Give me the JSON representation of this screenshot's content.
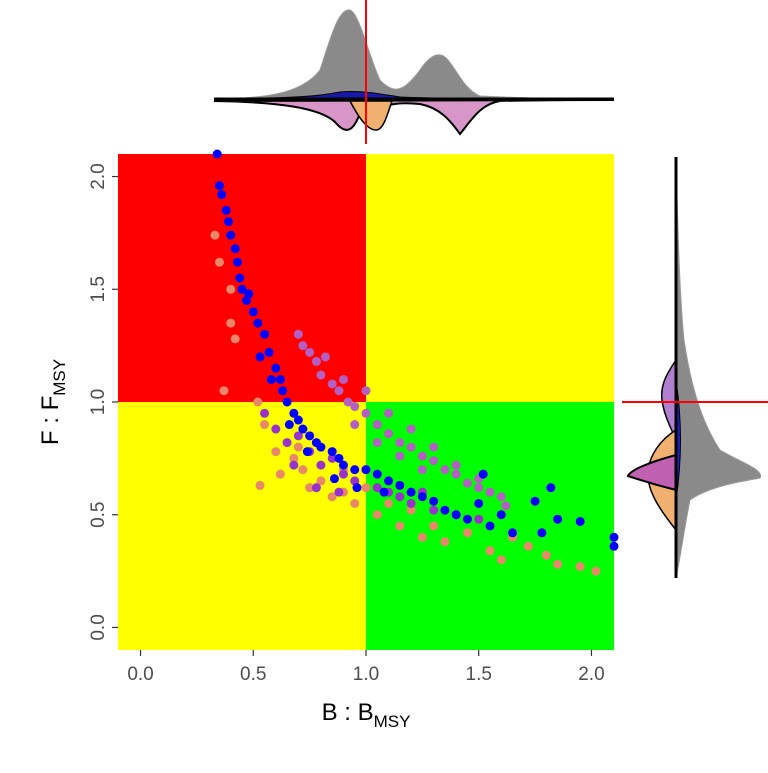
{
  "chart_data": {
    "type": "scatter",
    "title": "",
    "xlabel": {
      "main": "B : B",
      "sub": "MSY"
    },
    "ylabel": {
      "main": "F : F",
      "sub": "MSY"
    },
    "xlim": [
      -0.1,
      2.1
    ],
    "ylim": [
      -0.1,
      2.1
    ],
    "xticks": [
      "0.0",
      "0.5",
      "1.0",
      "1.5",
      "2.0"
    ],
    "yticks": [
      "0.0",
      "0.5",
      "1.0",
      "1.5",
      "2.0"
    ],
    "xtick_values": [
      0,
      0.5,
      1.0,
      1.5,
      2.0
    ],
    "ytick_values": [
      0,
      0.5,
      1.0,
      1.5,
      2.0
    ],
    "reference_point": {
      "x": 1.0,
      "y": 1.0
    },
    "quadrant_colors": {
      "top_left": "#ff0000",
      "top_right": "#ffff00",
      "bottom_left": "#ffff00",
      "bottom_right": "#00ff00"
    },
    "reference_line_color": "#ff0000",
    "series": [
      {
        "color": "#e8876a",
        "points": [
          [
            0.33,
            1.74
          ],
          [
            0.35,
            1.62
          ],
          [
            0.4,
            1.5
          ],
          [
            0.4,
            1.35
          ],
          [
            0.42,
            1.28
          ],
          [
            0.37,
            1.05
          ],
          [
            0.52,
            1.0
          ],
          [
            0.55,
            0.9
          ],
          [
            0.53,
            0.63
          ],
          [
            0.6,
            0.78
          ],
          [
            0.62,
            0.68
          ],
          [
            0.68,
            0.75
          ],
          [
            0.72,
            0.7
          ],
          [
            0.75,
            0.62
          ],
          [
            0.8,
            0.65
          ],
          [
            0.85,
            0.58
          ],
          [
            0.9,
            0.6
          ],
          [
            0.95,
            0.55
          ],
          [
            1.0,
            0.62
          ],
          [
            1.05,
            0.5
          ],
          [
            1.1,
            0.55
          ],
          [
            1.15,
            0.45
          ],
          [
            1.2,
            0.52
          ],
          [
            1.3,
            0.45
          ],
          [
            1.35,
            0.38
          ],
          [
            1.45,
            0.42
          ],
          [
            1.55,
            0.34
          ],
          [
            1.6,
            0.3
          ],
          [
            1.72,
            0.36
          ],
          [
            1.8,
            0.32
          ],
          [
            1.85,
            0.28
          ],
          [
            1.95,
            0.27
          ],
          [
            2.02,
            0.25
          ],
          [
            0.7,
            0.8
          ],
          [
            0.9,
            0.7
          ],
          [
            1.25,
            0.4
          ],
          [
            1.4,
            0.5
          ],
          [
            1.65,
            0.4
          ]
        ]
      },
      {
        "color": "#9932cc",
        "points": [
          [
            0.55,
            0.95
          ],
          [
            0.6,
            0.88
          ],
          [
            0.65,
            0.82
          ],
          [
            0.7,
            0.85
          ],
          [
            0.75,
            0.78
          ],
          [
            0.8,
            0.72
          ],
          [
            0.85,
            0.75
          ],
          [
            0.9,
            0.68
          ],
          [
            0.95,
            0.65
          ],
          [
            1.0,
            0.7
          ],
          [
            1.05,
            0.62
          ],
          [
            1.1,
            0.6
          ],
          [
            1.15,
            0.58
          ],
          [
            1.2,
            0.55
          ],
          [
            1.3,
            0.52
          ],
          [
            1.4,
            0.5
          ],
          [
            1.5,
            0.48
          ],
          [
            0.68,
            0.72
          ],
          [
            0.78,
            0.62
          ],
          [
            0.88,
            0.6
          ],
          [
            1.25,
            0.6
          ]
        ]
      },
      {
        "color": "#b35fc4",
        "points": [
          [
            0.7,
            1.3
          ],
          [
            0.72,
            1.25
          ],
          [
            0.75,
            1.22
          ],
          [
            0.78,
            1.18
          ],
          [
            0.8,
            1.12
          ],
          [
            0.85,
            1.08
          ],
          [
            0.88,
            1.05
          ],
          [
            0.92,
            1.0
          ],
          [
            0.95,
            0.98
          ],
          [
            1.0,
            0.95
          ],
          [
            1.05,
            0.9
          ],
          [
            1.1,
            0.86
          ],
          [
            1.15,
            0.82
          ],
          [
            1.2,
            0.8
          ],
          [
            1.25,
            0.76
          ],
          [
            1.3,
            0.74
          ],
          [
            1.35,
            0.7
          ],
          [
            1.4,
            0.68
          ],
          [
            1.45,
            0.64
          ],
          [
            1.5,
            0.62
          ],
          [
            1.55,
            0.6
          ],
          [
            1.6,
            0.58
          ],
          [
            1.62,
            0.54
          ],
          [
            0.82,
            1.2
          ],
          [
            0.9,
            1.1
          ],
          [
            1.0,
            1.05
          ],
          [
            1.1,
            0.95
          ],
          [
            1.2,
            0.88
          ],
          [
            1.3,
            0.8
          ],
          [
            1.4,
            0.72
          ],
          [
            1.5,
            0.66
          ],
          [
            0.95,
            0.9
          ],
          [
            1.05,
            0.82
          ],
          [
            1.15,
            0.76
          ],
          [
            1.25,
            0.7
          ]
        ]
      },
      {
        "color": "#0000ff",
        "points": [
          [
            0.34,
            2.1
          ],
          [
            0.35,
            1.96
          ],
          [
            0.36,
            1.92
          ],
          [
            0.38,
            1.85
          ],
          [
            0.39,
            1.8
          ],
          [
            0.4,
            1.74
          ],
          [
            0.42,
            1.68
          ],
          [
            0.43,
            1.62
          ],
          [
            0.44,
            1.55
          ],
          [
            0.45,
            1.5
          ],
          [
            0.47,
            1.45
          ],
          [
            0.5,
            1.4
          ],
          [
            0.52,
            1.35
          ],
          [
            0.55,
            1.3
          ],
          [
            0.57,
            1.22
          ],
          [
            0.6,
            1.15
          ],
          [
            0.62,
            1.1
          ],
          [
            0.63,
            1.05
          ],
          [
            0.65,
            1.0
          ],
          [
            0.68,
            0.95
          ],
          [
            0.7,
            0.92
          ],
          [
            0.72,
            0.88
          ],
          [
            0.75,
            0.85
          ],
          [
            0.78,
            0.82
          ],
          [
            0.8,
            0.8
          ],
          [
            0.85,
            0.78
          ],
          [
            0.88,
            0.75
          ],
          [
            0.9,
            0.72
          ],
          [
            0.95,
            0.7
          ],
          [
            1.0,
            0.7
          ],
          [
            1.05,
            0.68
          ],
          [
            1.1,
            0.65
          ],
          [
            1.15,
            0.63
          ],
          [
            1.2,
            0.6
          ],
          [
            1.25,
            0.58
          ],
          [
            1.3,
            0.56
          ],
          [
            1.35,
            0.52
          ],
          [
            1.4,
            0.5
          ],
          [
            1.45,
            0.48
          ],
          [
            1.5,
            0.55
          ],
          [
            1.52,
            0.68
          ],
          [
            1.55,
            0.45
          ],
          [
            1.6,
            0.5
          ],
          [
            1.65,
            0.42
          ],
          [
            1.75,
            0.56
          ],
          [
            1.78,
            0.42
          ],
          [
            1.82,
            0.62
          ],
          [
            1.85,
            0.48
          ],
          [
            1.95,
            0.47
          ],
          [
            2.1,
            0.4
          ],
          [
            2.1,
            0.36
          ],
          [
            0.58,
            1.1
          ],
          [
            0.66,
            0.9
          ],
          [
            0.74,
            0.78
          ],
          [
            0.86,
            0.66
          ],
          [
            0.96,
            0.62
          ],
          [
            1.08,
            0.6
          ],
          [
            0.48,
            1.48
          ],
          [
            0.53,
            1.2
          ]
        ]
      }
    ],
    "marginal_x_density": {
      "peaks": [
        0.85,
        1.35
      ],
      "reference": 1.0
    },
    "marginal_y_density": {
      "peaks": [
        0.75,
        1.0
      ],
      "reference": 1.0
    }
  }
}
